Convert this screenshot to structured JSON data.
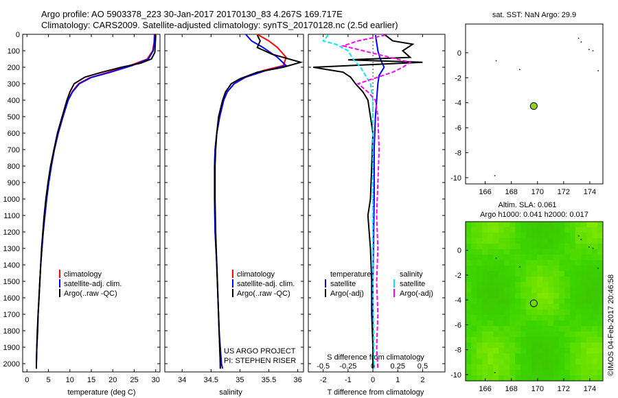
{
  "header": {
    "title_line1": "Argo profile: AO 5903378_223 30-Jan-2017 20170130_83 4.267S 169.717E",
    "title_line2": "Climatology: CARS2009. Satellite-adjusted climatology: synTS_20170128.nc (2.5d earlier)"
  },
  "side_text": "©IMOS 04-Feb-2017 20:46:58",
  "colors": {
    "red": "#ff0000",
    "blue": "#0000ff",
    "black": "#000000",
    "cyan": "#00e5ee",
    "magenta": "#ff00ff",
    "marker": "#8fd31e"
  },
  "chart_data": [
    {
      "type": "line",
      "id": "temperature",
      "xlabel": "temperature (deg C)",
      "ylabel": "",
      "xlim": [
        -1,
        31
      ],
      "ylim": [
        2050,
        0
      ],
      "xticks": [
        0,
        5,
        10,
        15,
        20,
        25,
        30
      ],
      "yticks": [
        0,
        100,
        200,
        300,
        400,
        500,
        600,
        700,
        800,
        900,
        1000,
        1100,
        1200,
        1300,
        1400,
        1500,
        1600,
        1700,
        1800,
        1900,
        2000
      ],
      "legend": [
        "climatology",
        "satellite-adj. clim.",
        "Argo(..raw -QC)"
      ],
      "series": [
        {
          "name": "climatology",
          "color": "red",
          "points": [
            [
              29.7,
              0
            ],
            [
              29.6,
              50
            ],
            [
              29.3,
              100
            ],
            [
              28.0,
              150
            ],
            [
              24.0,
              190
            ],
            [
              19.0,
              230
            ],
            [
              14.5,
              265
            ],
            [
              12.0,
              300
            ],
            [
              10.5,
              350
            ],
            [
              9.5,
              400
            ],
            [
              8.3,
              500
            ],
            [
              7.2,
              600
            ],
            [
              6.3,
              700
            ],
            [
              5.6,
              800
            ],
            [
              5.0,
              900
            ],
            [
              4.5,
              1000
            ],
            [
              4.1,
              1100
            ],
            [
              3.8,
              1200
            ],
            [
              3.5,
              1300
            ],
            [
              3.2,
              1400
            ],
            [
              3.0,
              1500
            ],
            [
              2.8,
              1600
            ],
            [
              2.6,
              1700
            ],
            [
              2.5,
              1800
            ],
            [
              2.3,
              1900
            ],
            [
              2.2,
              2000
            ],
            [
              2.2,
              2030
            ]
          ]
        },
        {
          "name": "satellite-adj. clim.",
          "color": "blue",
          "points": [
            [
              29.8,
              0
            ],
            [
              29.7,
              50
            ],
            [
              29.4,
              100
            ],
            [
              28.3,
              150
            ],
            [
              24.5,
              190
            ],
            [
              19.5,
              230
            ],
            [
              15.0,
              262
            ],
            [
              12.2,
              300
            ],
            [
              10.6,
              350
            ],
            [
              9.6,
              400
            ],
            [
              8.4,
              500
            ],
            [
              7.3,
              600
            ],
            [
              6.4,
              700
            ],
            [
              5.7,
              800
            ],
            [
              5.1,
              900
            ],
            [
              4.6,
              1000
            ],
            [
              4.2,
              1100
            ],
            [
              3.8,
              1200
            ],
            [
              3.5,
              1300
            ],
            [
              3.2,
              1400
            ],
            [
              3.0,
              1500
            ],
            [
              2.8,
              1600
            ],
            [
              2.6,
              1700
            ],
            [
              2.5,
              1800
            ],
            [
              2.3,
              1900
            ],
            [
              2.2,
              2000
            ],
            [
              2.2,
              2030
            ]
          ]
        },
        {
          "name": "Argo(..raw -QC)",
          "color": "black",
          "points": [
            [
              30.0,
              5
            ],
            [
              29.9,
              60
            ],
            [
              29.8,
              110
            ],
            [
              29.0,
              150
            ],
            [
              26.5,
              175
            ],
            [
              22.0,
              200
            ],
            [
              17.5,
              230
            ],
            [
              13.5,
              260
            ],
            [
              11.0,
              300
            ],
            [
              10.0,
              350
            ],
            [
              9.3,
              400
            ],
            [
              8.2,
              500
            ],
            [
              7.1,
              600
            ],
            [
              6.3,
              700
            ],
            [
              5.5,
              800
            ],
            [
              4.9,
              900
            ],
            [
              4.4,
              1000
            ],
            [
              4.0,
              1100
            ],
            [
              3.7,
              1200
            ],
            [
              3.4,
              1300
            ],
            [
              3.2,
              1400
            ],
            [
              3.0,
              1500
            ],
            [
              2.8,
              1600
            ],
            [
              2.6,
              1700
            ],
            [
              2.4,
              1800
            ],
            [
              2.3,
              1900
            ],
            [
              2.2,
              2000
            ],
            [
              2.2,
              2030
            ]
          ]
        }
      ]
    },
    {
      "type": "line",
      "id": "salinity",
      "xlabel": "salinity",
      "xlim": [
        33.7,
        36.1
      ],
      "ylim": [
        2050,
        0
      ],
      "xticks": [
        34,
        34.5,
        35,
        35.5,
        36
      ],
      "xticklabels": [
        "34",
        "34.5",
        "35",
        "35.5",
        "36"
      ],
      "legend": [
        "climatology",
        "satellite-adj. clim.",
        "Argo(..raw -QC)"
      ],
      "annotation": [
        "US ARGO PROJECT",
        "PI: STEPHEN RISER"
      ],
      "series": [
        {
          "name": "climatology",
          "color": "red",
          "points": [
            [
              35.3,
              0
            ],
            [
              35.5,
              40
            ],
            [
              35.65,
              80
            ],
            [
              35.8,
              140
            ],
            [
              35.75,
              190
            ],
            [
              35.4,
              220
            ],
            [
              35.1,
              260
            ],
            [
              34.9,
              300
            ],
            [
              34.78,
              350
            ],
            [
              34.72,
              400
            ],
            [
              34.65,
              500
            ],
            [
              34.6,
              600
            ],
            [
              34.57,
              700
            ],
            [
              34.56,
              800
            ],
            [
              34.56,
              1000
            ],
            [
              34.57,
              1200
            ],
            [
              34.6,
              1400
            ],
            [
              34.62,
              1600
            ],
            [
              34.64,
              1800
            ],
            [
              34.66,
              2000
            ],
            [
              34.66,
              2030
            ]
          ]
        },
        {
          "name": "satellite-adj. clim.",
          "color": "blue",
          "points": [
            [
              35.1,
              0
            ],
            [
              35.2,
              40
            ],
            [
              35.4,
              80
            ],
            [
              35.65,
              140
            ],
            [
              35.8,
              190
            ],
            [
              35.45,
              220
            ],
            [
              35.1,
              260
            ],
            [
              34.9,
              300
            ],
            [
              34.78,
              350
            ],
            [
              34.72,
              400
            ],
            [
              34.65,
              500
            ],
            [
              34.6,
              600
            ],
            [
              34.57,
              700
            ],
            [
              34.56,
              800
            ],
            [
              34.56,
              1000
            ],
            [
              34.57,
              1200
            ],
            [
              34.6,
              1400
            ],
            [
              34.62,
              1600
            ],
            [
              34.64,
              1800
            ],
            [
              34.68,
              2000
            ],
            [
              34.7,
              2030
            ]
          ]
        },
        {
          "name": "Argo(..raw -QC)",
          "color": "black",
          "points": [
            [
              35.3,
              5
            ],
            [
              35.35,
              40
            ],
            [
              35.3,
              80
            ],
            [
              35.55,
              120
            ],
            [
              36.05,
              170
            ],
            [
              35.75,
              200
            ],
            [
              35.3,
              230
            ],
            [
              35.0,
              270
            ],
            [
              34.85,
              300
            ],
            [
              34.75,
              350
            ],
            [
              34.7,
              400
            ],
            [
              34.63,
              500
            ],
            [
              34.6,
              600
            ],
            [
              34.58,
              700
            ],
            [
              34.57,
              800
            ],
            [
              34.57,
              1000
            ],
            [
              34.58,
              1200
            ],
            [
              34.6,
              1400
            ],
            [
              34.62,
              1600
            ],
            [
              34.64,
              1800
            ],
            [
              34.66,
              2000
            ],
            [
              34.66,
              2030
            ]
          ]
        }
      ]
    },
    {
      "type": "line",
      "id": "difference",
      "xlabel": "T difference from climatology",
      "xlabel2": "S difference from climatology",
      "xlim": [
        -2.6,
        2.9
      ],
      "ylim": [
        2050,
        0
      ],
      "xticks": [
        -2,
        -1,
        0,
        1,
        2
      ],
      "xticks_s": [
        -0.5,
        -0.25,
        0,
        0.25,
        0.5
      ],
      "xticks_s_labels": [
        "-0.5",
        "-0.25",
        "0",
        "0.25",
        "0.5"
      ],
      "legend_temperature": [
        "temperature",
        "satellite",
        "Argo(-adj)"
      ],
      "legend_salinity": [
        "salinity",
        "satellite",
        "Argo(-adj)"
      ],
      "series": [
        {
          "name": "T satellite",
          "color": "blue",
          "points": [
            [
              0.1,
              5
            ],
            [
              0.15,
              50
            ],
            [
              0.2,
              100
            ],
            [
              0.3,
              150
            ],
            [
              0.45,
              200
            ],
            [
              0.25,
              250
            ],
            [
              0.2,
              300
            ],
            [
              0.15,
              400
            ],
            [
              0.1,
              500
            ],
            [
              0.05,
              700
            ],
            [
              0.05,
              1000
            ],
            [
              0.0,
              1500
            ],
            [
              0.0,
              2030
            ]
          ]
        },
        {
          "name": "T Argo(-adj)",
          "color": "black",
          "points": [
            [
              0.5,
              5
            ],
            [
              0.8,
              40
            ],
            [
              1.6,
              60
            ],
            [
              1.2,
              100
            ],
            [
              1.5,
              140
            ],
            [
              -1.0,
              155
            ],
            [
              2.0,
              170
            ],
            [
              -2.4,
              200
            ],
            [
              -1.8,
              215
            ],
            [
              -1.2,
              230
            ],
            [
              -0.9,
              260
            ],
            [
              -0.7,
              300
            ],
            [
              -0.4,
              350
            ],
            [
              -0.2,
              400
            ],
            [
              -0.1,
              500
            ],
            [
              0.0,
              600
            ],
            [
              -0.05,
              800
            ],
            [
              -0.1,
              1000
            ],
            [
              -0.2,
              1100
            ],
            [
              -0.1,
              1300
            ],
            [
              -0.05,
              1500
            ],
            [
              -0.05,
              1700
            ],
            [
              0.0,
              1900
            ],
            [
              0.0,
              2030
            ]
          ]
        },
        {
          "name": "S satellite",
          "color": "cyan",
          "points": [
            [
              -1.8,
              5
            ],
            [
              -2.0,
              40
            ],
            [
              -1.5,
              60
            ],
            [
              -1.0,
              100
            ],
            [
              -0.8,
              150
            ],
            [
              -0.5,
              200
            ],
            [
              -0.3,
              250
            ],
            [
              -0.1,
              300
            ],
            [
              0.0,
              400
            ],
            [
              0.0,
              600
            ],
            [
              0.0,
              800
            ],
            [
              0.0,
              900
            ],
            [
              0.0,
              1200
            ],
            [
              0.0,
              1600
            ],
            [
              0.05,
              2030
            ]
          ]
        },
        {
          "name": "S Argo(-adj)",
          "color": "magenta",
          "points": [
            [
              0.5,
              5
            ],
            [
              -0.6,
              40
            ],
            [
              -1.2,
              70
            ],
            [
              1.5,
              170
            ],
            [
              1.2,
              200
            ],
            [
              0.8,
              230
            ],
            [
              -0.6,
              300
            ],
            [
              -0.2,
              350
            ],
            [
              0.1,
              400
            ],
            [
              0.2,
              500
            ],
            [
              0.25,
              700
            ],
            [
              0.2,
              900
            ],
            [
              0.15,
              1100
            ],
            [
              0.2,
              1300
            ],
            [
              0.15,
              1500
            ],
            [
              0.2,
              1700
            ],
            [
              0.15,
              1900
            ],
            [
              0.2,
              2030
            ]
          ]
        }
      ]
    },
    {
      "type": "scatter",
      "id": "sst_map",
      "title": "sat. SST: NaN Argo: 29.9",
      "xlim": [
        164.5,
        175
      ],
      "ylim": [
        -10.5,
        2.3
      ],
      "xticks": [
        166,
        168,
        170,
        172,
        174
      ],
      "yticks": [
        0,
        -2,
        -4,
        -6,
        -8,
        -10
      ],
      "argo_position": [
        169.717,
        -4.267
      ]
    },
    {
      "type": "heatmap",
      "id": "sla_map",
      "title": "Altim. SLA: 0.061",
      "subtitle": "Argo h1000: 0.041  h2000: 0.017",
      "xlim": [
        164.5,
        175
      ],
      "ylim": [
        -10.5,
        2.3
      ],
      "xticks": [
        166,
        168,
        170,
        172,
        174
      ],
      "yticks": [
        0,
        -2,
        -4,
        -6,
        -8,
        -10
      ],
      "argo_position": [
        169.717,
        -4.267
      ]
    }
  ]
}
